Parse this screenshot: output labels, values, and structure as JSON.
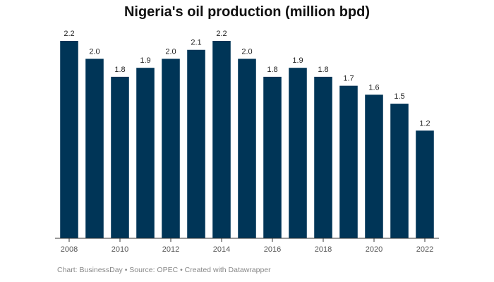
{
  "chart_data": {
    "type": "bar",
    "title": "Nigeria's oil production (million bpd)",
    "categories": [
      "2008",
      "2009",
      "2010",
      "2011",
      "2012",
      "2013",
      "2014",
      "2015",
      "2016",
      "2017",
      "2018",
      "2019",
      "2020",
      "2021",
      "2022"
    ],
    "values": [
      2.2,
      2.0,
      1.8,
      1.9,
      2.0,
      2.1,
      2.2,
      2.0,
      1.8,
      1.9,
      1.8,
      1.7,
      1.6,
      1.5,
      1.2
    ],
    "value_labels": [
      "2.2",
      "2.0",
      "1.8",
      "1.9",
      "2.0",
      "2.1",
      "2.2",
      "2.0",
      "1.8",
      "1.9",
      "1.8",
      "1.7",
      "1.6",
      "1.5",
      "1.2"
    ],
    "x_tick_labels": [
      "2008",
      "",
      "2010",
      "",
      "2012",
      "",
      "2014",
      "",
      "2016",
      "",
      "2018",
      "",
      "2020",
      "",
      "2022"
    ],
    "xlabel": "",
    "ylabel": "",
    "ylim": [
      0,
      2.2
    ],
    "grid": false,
    "bar_color": "#003557"
  },
  "footer": {
    "text": "Chart: BusinessDay • Source: OPEC • Created with Datawrapper"
  }
}
